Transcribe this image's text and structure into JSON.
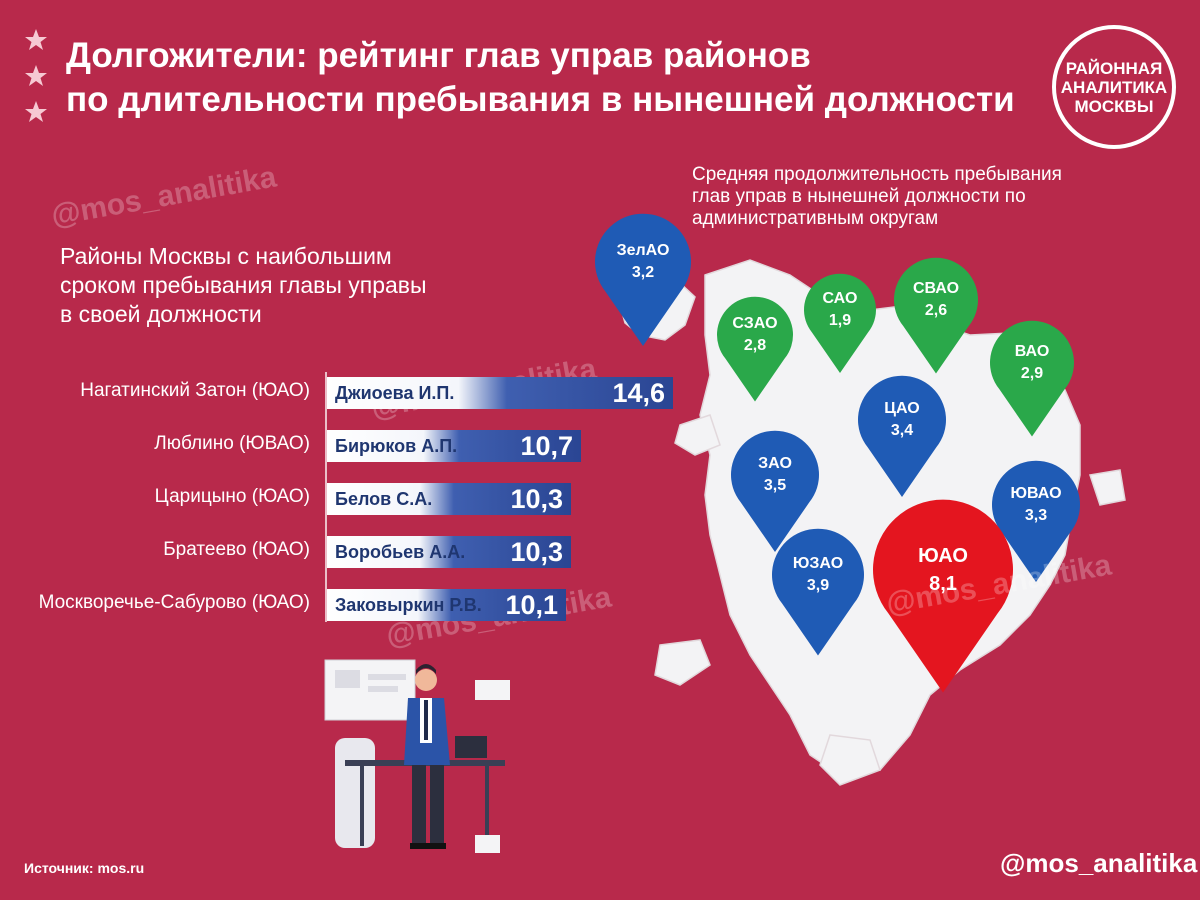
{
  "header": {
    "title_line1": "Долгожители: рейтинг глав управ районов",
    "title_line2": "по длительности пребывания в нынешней должности"
  },
  "logo": {
    "line1": "РАЙОННАЯ",
    "line2": "АНАЛИТИКА",
    "line3": "МОСКВЫ"
  },
  "watermark": "@mos_analitika",
  "left_subtitle": {
    "line1": "Районы Москвы с наибольшим",
    "line2": "сроком пребывания главы управы",
    "line3": "в своей должности"
  },
  "map_subtitle": {
    "line1": "Средняя продолжительность пребывания",
    "line2": "глав управ в нынешней должности по",
    "line3": "административным округам"
  },
  "footer": {
    "source": "Источник: mos.ru",
    "handle": "@mos_analitika"
  },
  "colors": {
    "background": "#b8294b",
    "bar_blue": "#2a4593",
    "pin_blue": "#1f5bb5",
    "pin_green": "#2aa84a",
    "pin_red": "#e4151f",
    "map_fill": "#f3f3f5"
  },
  "chart_data": [
    {
      "type": "bar",
      "orientation": "horizontal",
      "categories": [
        "Нагатинский Затон (ЮАО)",
        "Люблино (ЮВАО)",
        "Царицыно (ЮАО)",
        "Братеево (ЮАО)",
        "Москворечье-Сабурово (ЮАО)"
      ],
      "names": [
        "Джиоева И.П.",
        "Бирюков А.П.",
        "Белов С.А.",
        "Воробьев А.А.",
        "Заковыркин Р.В."
      ],
      "values": [
        14.6,
        10.7,
        10.3,
        10.3,
        10.1
      ],
      "labels": [
        "14,6",
        "10,7",
        "10,3",
        "10,3",
        "10,1"
      ]
    },
    {
      "type": "map",
      "regions": [
        {
          "name": "ЗелАО",
          "label": "3,2",
          "value": 3.2,
          "color": "blue"
        },
        {
          "name": "САО",
          "label": "1,9",
          "value": 1.9,
          "color": "green"
        },
        {
          "name": "СВАО",
          "label": "2,6",
          "value": 2.6,
          "color": "green"
        },
        {
          "name": "СЗАО",
          "label": "2,8",
          "value": 2.8,
          "color": "green"
        },
        {
          "name": "ВАО",
          "label": "2,9",
          "value": 2.9,
          "color": "green"
        },
        {
          "name": "ЦАО",
          "label": "3,4",
          "value": 3.4,
          "color": "blue"
        },
        {
          "name": "ЗАО",
          "label": "3,5",
          "value": 3.5,
          "color": "blue"
        },
        {
          "name": "ЮВАО",
          "label": "3,3",
          "value": 3.3,
          "color": "blue"
        },
        {
          "name": "ЮЗАО",
          "label": "3,9",
          "value": 3.9,
          "color": "blue"
        },
        {
          "name": "ЮАО",
          "label": "8,1",
          "value": 8.1,
          "color": "red"
        }
      ]
    }
  ]
}
